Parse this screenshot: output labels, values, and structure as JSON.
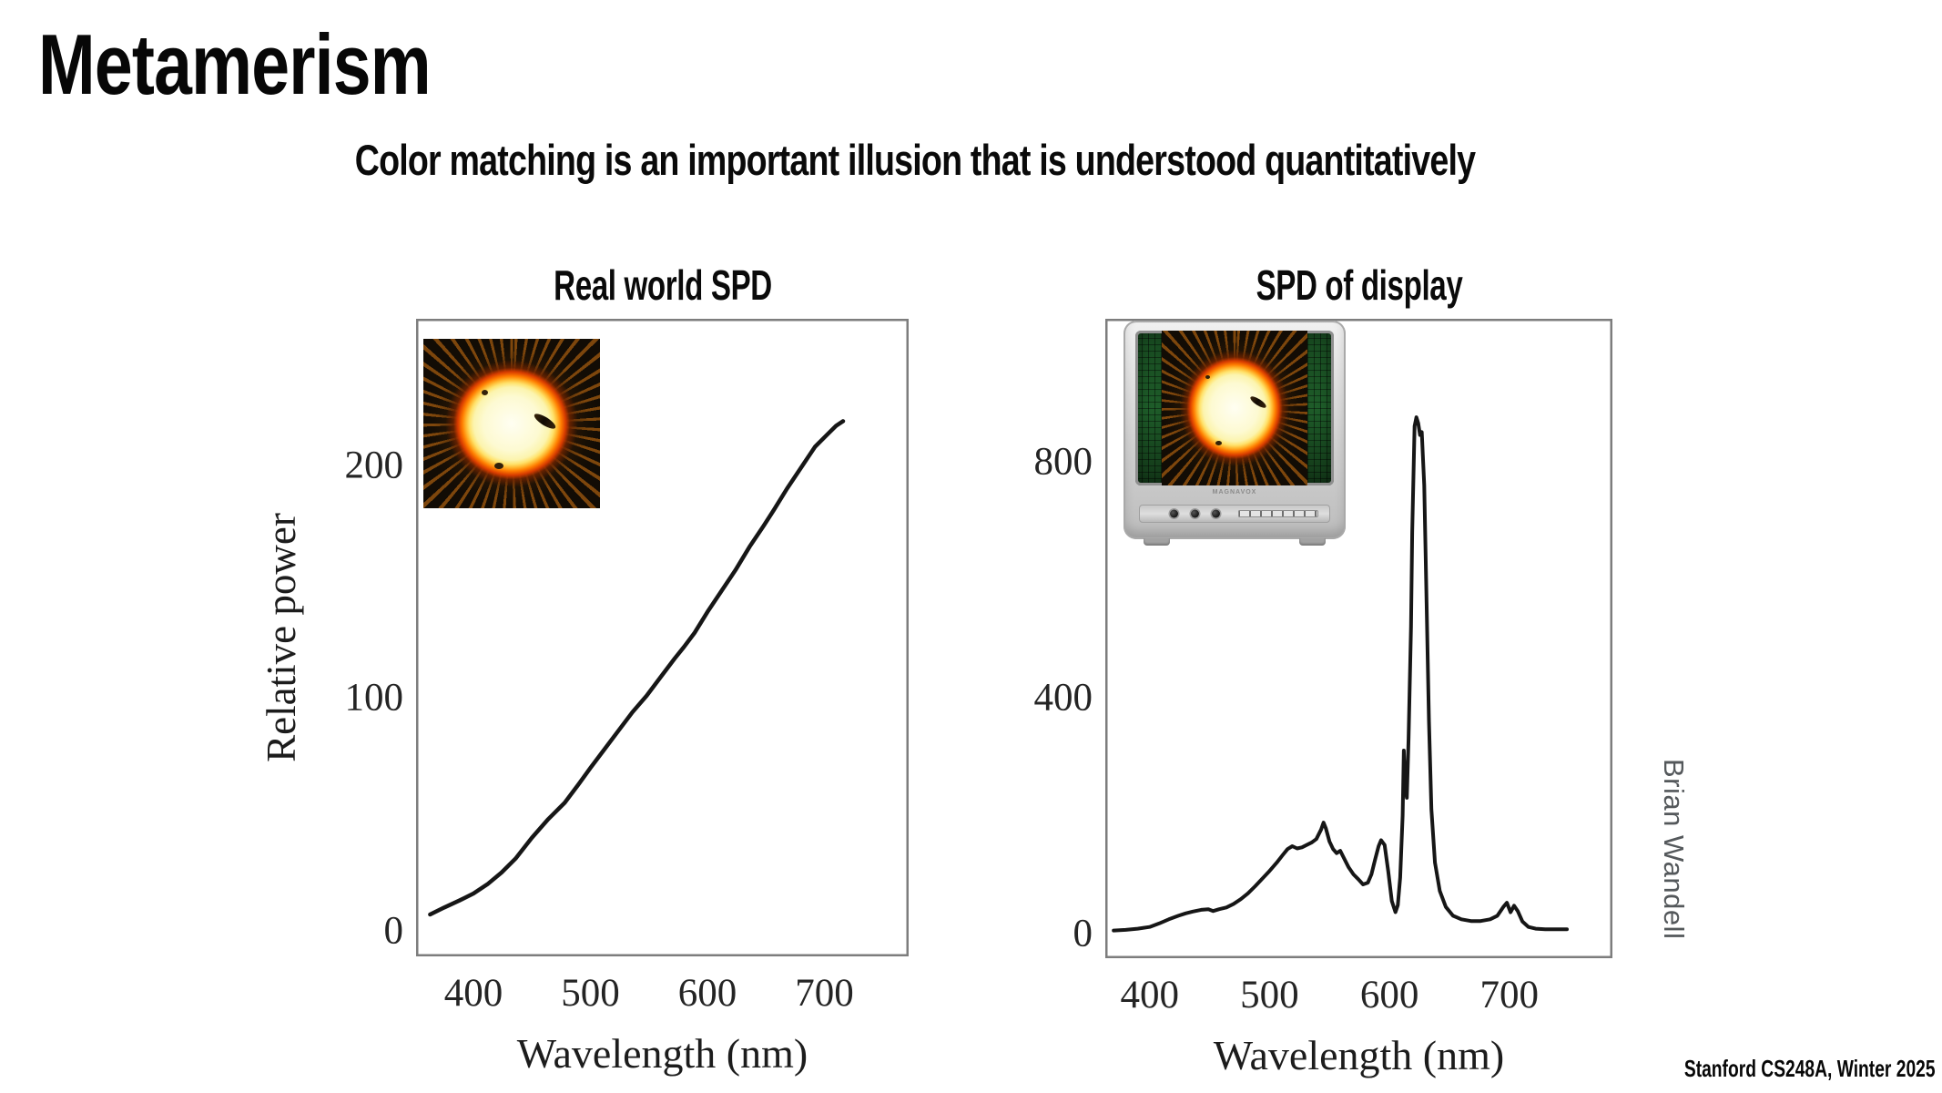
{
  "slide": {
    "title": "Metamerism",
    "subtitle": "Color matching is an important illusion that is understood quantitatively",
    "credit": "Brian Wandell",
    "footer": "Stanford CS248A, Winter 2025"
  },
  "tv": {
    "brand": "MAGNAVOX"
  },
  "chart_data": [
    {
      "id": "real-world-spd",
      "type": "line",
      "title": "Real world SPD",
      "xlabel": "Wavelength (nm)",
      "ylabel": "Relative power",
      "x_domain": [
        351,
        772
      ],
      "y_domain": [
        -11,
        263
      ],
      "x_ticks": [
        400,
        500,
        600,
        700
      ],
      "y_ticks": [
        0,
        100,
        200
      ],
      "grid": false,
      "legend": "none",
      "frame_color": "#7d7d7d",
      "line_color": "#161616",
      "line_width": 4.5,
      "series": [
        {
          "name": "real-world-spd",
          "points": [
            [
              363,
              7
            ],
            [
              375,
              10
            ],
            [
              388,
              13
            ],
            [
              400,
              16
            ],
            [
              412,
              20
            ],
            [
              424,
              25
            ],
            [
              436,
              31
            ],
            [
              450,
              40
            ],
            [
              464,
              48
            ],
            [
              478,
              55
            ],
            [
              490,
              63
            ],
            [
              500,
              70
            ],
            [
              512,
              78
            ],
            [
              524,
              86
            ],
            [
              536,
              94
            ],
            [
              548,
              101
            ],
            [
              560,
              109
            ],
            [
              572,
              117
            ],
            [
              580,
              122
            ],
            [
              589,
              128
            ],
            [
              600,
              137
            ],
            [
              612,
              146
            ],
            [
              624,
              155
            ],
            [
              636,
              165
            ],
            [
              648,
              174
            ],
            [
              657,
              181
            ],
            [
              668,
              190
            ],
            [
              680,
              199
            ],
            [
              692,
              208
            ],
            [
              702,
              213
            ],
            [
              710,
              217
            ],
            [
              716,
              219
            ]
          ]
        }
      ]
    },
    {
      "id": "display-spd",
      "type": "line",
      "title": "SPD of display",
      "xlabel": "Wavelength (nm)",
      "ylabel": "",
      "x_domain": [
        363,
        786
      ],
      "y_domain": [
        -42,
        1042
      ],
      "x_ticks": [
        400,
        500,
        600,
        700
      ],
      "y_ticks": [
        0,
        400,
        800
      ],
      "grid": false,
      "legend": "none",
      "frame_color": "#7d7d7d",
      "line_color": "#161616",
      "line_width": 4,
      "series": [
        {
          "name": "display-spd",
          "points": [
            [
              370,
              5
            ],
            [
              380,
              6
            ],
            [
              390,
              8
            ],
            [
              400,
              11
            ],
            [
              408,
              17
            ],
            [
              416,
              24
            ],
            [
              424,
              30
            ],
            [
              430,
              34
            ],
            [
              436,
              37
            ],
            [
              443,
              40
            ],
            [
              449,
              41
            ],
            [
              453,
              38
            ],
            [
              458,
              41
            ],
            [
              464,
              44
            ],
            [
              470,
              50
            ],
            [
              476,
              58
            ],
            [
              482,
              68
            ],
            [
              488,
              80
            ],
            [
              494,
              93
            ],
            [
              500,
              106
            ],
            [
              506,
              120
            ],
            [
              511,
              133
            ],
            [
              515,
              143
            ],
            [
              519,
              148
            ],
            [
              523,
              144
            ],
            [
              527,
              146
            ],
            [
              531,
              150
            ],
            [
              535,
              154
            ],
            [
              539,
              160
            ],
            [
              543,
              176
            ],
            [
              545,
              188
            ],
            [
              547,
              178
            ],
            [
              550,
              156
            ],
            [
              553,
              143
            ],
            [
              556,
              136
            ],
            [
              559,
              140
            ],
            [
              562,
              128
            ],
            [
              566,
              112
            ],
            [
              570,
              100
            ],
            [
              574,
              92
            ],
            [
              578,
              83
            ],
            [
              582,
              86
            ],
            [
              585,
              100
            ],
            [
              588,
              125
            ],
            [
              591,
              148
            ],
            [
              593,
              158
            ],
            [
              596,
              150
            ],
            [
              599,
              105
            ],
            [
              602,
              55
            ],
            [
              605,
              36
            ],
            [
              607,
              48
            ],
            [
              609,
              95
            ],
            [
              611,
              200
            ],
            [
              612,
              310
            ],
            [
              613,
              255
            ],
            [
              614.5,
              230
            ],
            [
              616,
              330
            ],
            [
              618,
              520
            ],
            [
              619,
              680
            ],
            [
              621,
              860
            ],
            [
              622.5,
              875
            ],
            [
              624,
              865
            ],
            [
              625.5,
              845
            ],
            [
              627,
              850
            ],
            [
              629,
              760
            ],
            [
              631,
              560
            ],
            [
              633,
              360
            ],
            [
              635,
              210
            ],
            [
              638,
              120
            ],
            [
              642,
              72
            ],
            [
              647,
              45
            ],
            [
              653,
              30
            ],
            [
              660,
              24
            ],
            [
              668,
              21
            ],
            [
              676,
              21
            ],
            [
              684,
              24
            ],
            [
              690,
              30
            ],
            [
              695,
              45
            ],
            [
              698,
              52
            ],
            [
              701,
              36
            ],
            [
              704,
              47
            ],
            [
              707,
              38
            ],
            [
              711,
              20
            ],
            [
              716,
              11
            ],
            [
              722,
              8
            ],
            [
              730,
              7
            ],
            [
              740,
              7
            ],
            [
              748,
              7
            ]
          ]
        }
      ]
    }
  ]
}
